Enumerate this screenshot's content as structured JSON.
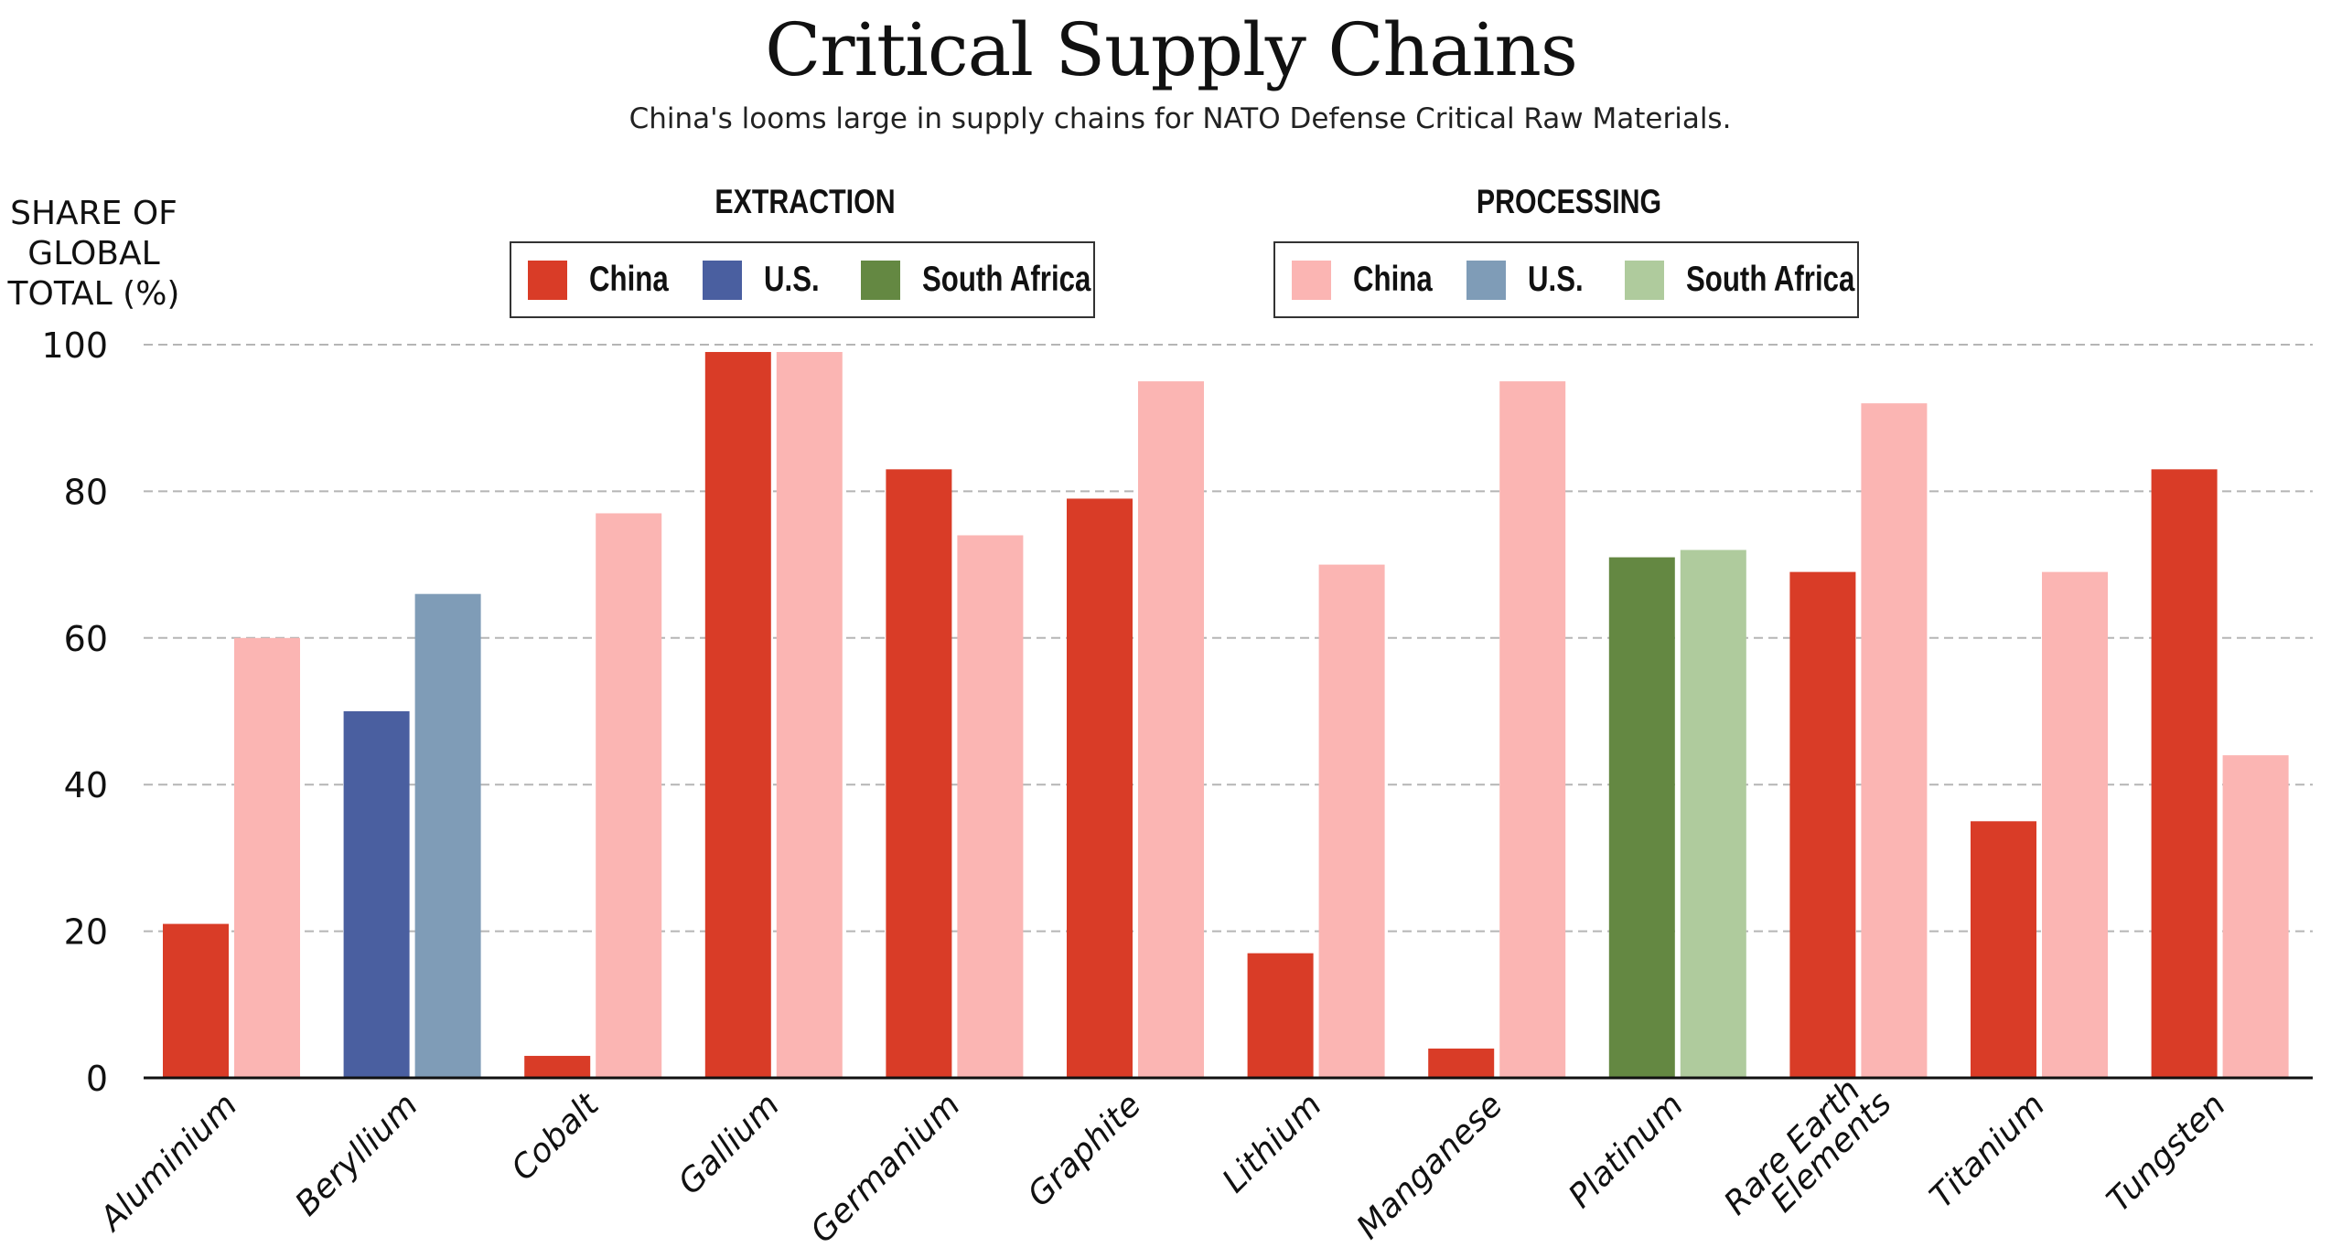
{
  "chart_data": {
    "type": "bar",
    "title": "Critical Supply Chains",
    "subtitle": "China's looms large in supply chains for NATO Defense Critical Raw Materials.",
    "ylabel": [
      "SHARE OF",
      "GLOBAL",
      "TOTAL (%)"
    ],
    "xlabel": "",
    "ylim": [
      0,
      100
    ],
    "yticks": [
      0,
      20,
      40,
      60,
      80,
      100
    ],
    "grid": true,
    "categories": [
      [
        "Aluminium"
      ],
      [
        "Beryllium"
      ],
      [
        "Cobalt"
      ],
      [
        "Gallium"
      ],
      [
        "Germanium"
      ],
      [
        "Graphite"
      ],
      [
        "Lithium"
      ],
      [
        "Manganese"
      ],
      [
        "Platinum"
      ],
      [
        "Rare Earth",
        "Elements"
      ],
      [
        "Titanium"
      ],
      [
        "Tungsten"
      ]
    ],
    "bars": [
      {
        "category": "Aluminium",
        "country": "China",
        "extraction": 21,
        "processing": 60
      },
      {
        "category": "Beryllium",
        "country": "U.S.",
        "extraction": 50,
        "processing": 66
      },
      {
        "category": "Cobalt",
        "country": "China",
        "extraction": 3,
        "processing": 77
      },
      {
        "category": "Gallium",
        "country": "China",
        "extraction": 99,
        "processing": 99
      },
      {
        "category": "Germanium",
        "country": "China",
        "extraction": 83,
        "processing": 74
      },
      {
        "category": "Graphite",
        "country": "China",
        "extraction": 79,
        "processing": 95
      },
      {
        "category": "Lithium",
        "country": "China",
        "extraction": 17,
        "processing": 70
      },
      {
        "category": "Manganese",
        "country": "China",
        "extraction": 4,
        "processing": 95
      },
      {
        "category": "Platinum",
        "country": "South Africa",
        "extraction": 71,
        "processing": 72
      },
      {
        "category": "Rare Earth Elements",
        "country": "China",
        "extraction": 69,
        "processing": 92
      },
      {
        "category": "Titanium",
        "country": "China",
        "extraction": 35,
        "processing": 69
      },
      {
        "category": "Tungsten",
        "country": "China",
        "extraction": 83,
        "processing": 44
      }
    ],
    "legend": {
      "extraction": {
        "title": "EXTRACTION",
        "items": [
          {
            "label": "China",
            "color": "#d93c27"
          },
          {
            "label": "U.S.",
            "color": "#4a5fa0"
          },
          {
            "label": "South Africa",
            "color": "#648842"
          }
        ]
      },
      "processing": {
        "title": "PROCESSING",
        "items": [
          {
            "label": "China",
            "color": "#fbb5b3"
          },
          {
            "label": "U.S.",
            "color": "#7f9cb7"
          },
          {
            "label": "South Africa",
            "color": "#afcb9d"
          }
        ]
      },
      "placement": "top-center"
    },
    "colors": {
      "extraction": {
        "China": "#d93c27",
        "U.S.": "#4a5fa0",
        "South Africa": "#648842"
      },
      "processing": {
        "China": "#fbb5b3",
        "U.S.": "#7f9cb7",
        "South Africa": "#afcb9d"
      }
    }
  }
}
